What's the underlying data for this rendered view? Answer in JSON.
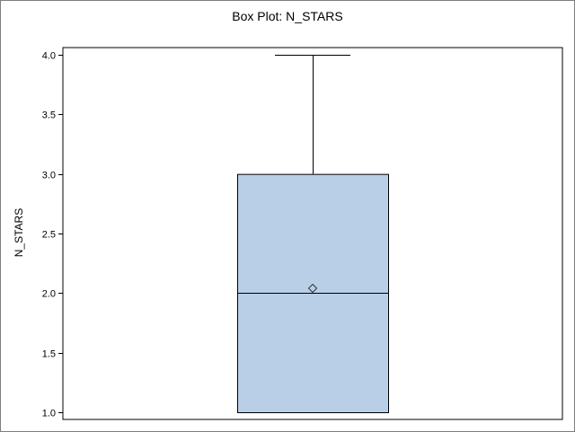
{
  "chart_data": {
    "type": "box",
    "title": "Box Plot: N_STARS",
    "xlabel": "",
    "ylabel": "N_STARS",
    "ylim": [
      1.0,
      4.0
    ],
    "yticks": [
      "1.0",
      "1.5",
      "2.0",
      "2.5",
      "3.0",
      "3.5",
      "4.0"
    ],
    "box": {
      "min": 1.0,
      "q1": 1.0,
      "median": 2.0,
      "q3": 3.0,
      "max": 4.0,
      "mean": 2.04
    },
    "colors": {
      "box_fill": "#b8cfe7",
      "box_stroke": "#000000",
      "frame": "#000000"
    }
  }
}
